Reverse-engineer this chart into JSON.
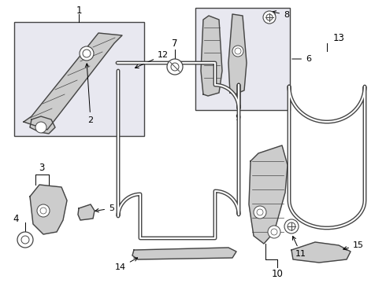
{
  "bg_color": "#ffffff",
  "line_color": "#444444",
  "fill_color": "#cccccc",
  "box_fill": "#e8e8f0",
  "figsize": [
    4.9,
    3.6
  ],
  "dpi": 100
}
